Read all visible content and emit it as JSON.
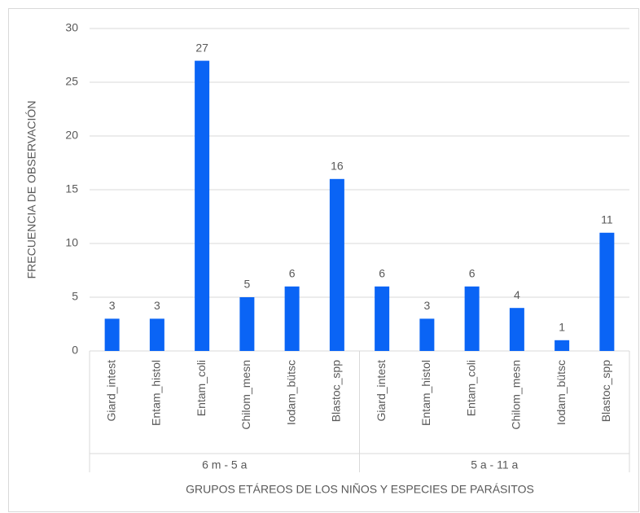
{
  "chart_data": {
    "type": "bar",
    "ytitle": "FRECUENCIA DE OBSERVACIÓN",
    "xtitle": "GRUPOS ETÁREOS DE LOS NIÑOS Y ESPECIES DE PARÁSITOS",
    "color": "#0a64f5",
    "groups": [
      {
        "name": "6 m - 5 a",
        "categories": [
          "Giard_intest",
          "Entam_histol",
          "Entam_coli",
          "Chilom_mesn",
          "Iodam_bütsc",
          "Blastoc_spp"
        ],
        "values": [
          3,
          3,
          27,
          5,
          6,
          16
        ]
      },
      {
        "name": "5 a - 11 a",
        "categories": [
          "Giard_intest",
          "Entam_histol",
          "Entam_coli",
          "Chilom_mesn",
          "Iodam_bütsc",
          "Blastoc_spp"
        ],
        "values": [
          6,
          3,
          6,
          4,
          1,
          11
        ]
      }
    ],
    "ylim": [
      0,
      30
    ],
    "yticks": [
      0,
      5,
      10,
      15,
      20,
      25,
      30
    ],
    "grid": true
  }
}
